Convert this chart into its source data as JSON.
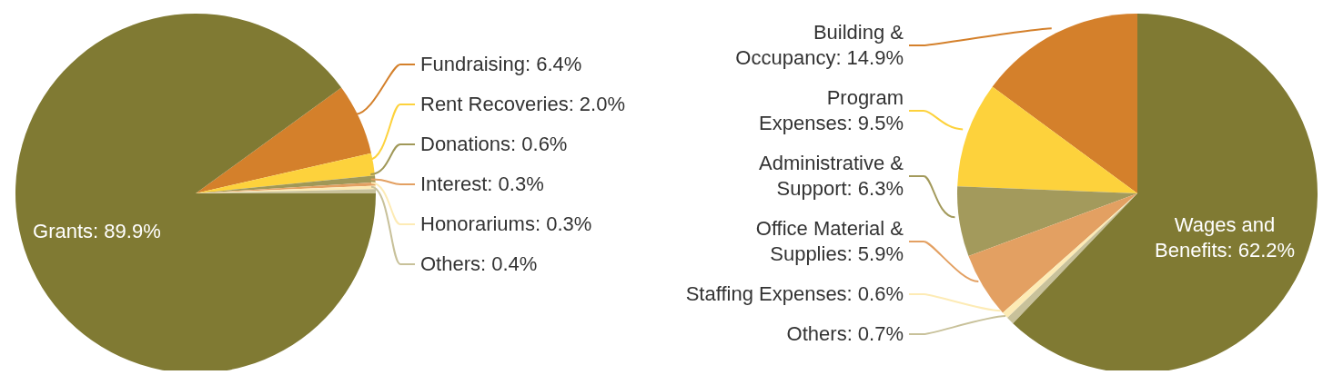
{
  "chart_data": [
    {
      "type": "pie",
      "categories": [
        "Fundraising",
        "Rent Recoveries",
        "Donations",
        "Interest",
        "Honorariums",
        "Others",
        "Grants"
      ],
      "values": [
        6.4,
        2.0,
        0.6,
        0.3,
        0.3,
        0.4,
        89.9
      ],
      "value_labels": [
        "6.4%",
        "2.0%",
        "0.6%",
        "0.3%",
        "0.3%",
        "0.4%",
        "89.9%"
      ],
      "colors": [
        "#d4802b",
        "#fdd23c",
        "#a09858",
        "#e3a062",
        "#fdebb5",
        "#c8c19a",
        "#807a33"
      ]
    },
    {
      "type": "pie",
      "categories": [
        "Building & Occupancy",
        "Program Expenses",
        "Administrative & Support",
        "Office Material & Supplies",
        "Staffing Expenses",
        "Others",
        "Wages and Benefits"
      ],
      "values": [
        14.9,
        9.5,
        6.3,
        5.9,
        0.6,
        0.7,
        62.2
      ],
      "value_labels": [
        "14.9%",
        "9.5%",
        "6.3%",
        "5.9%",
        "0.6%",
        "0.7%",
        "62.2%"
      ],
      "colors": [
        "#d4802b",
        "#fdd23c",
        "#a39a5c",
        "#e3a062",
        "#fdebb5",
        "#c8c19a",
        "#807a33"
      ]
    }
  ]
}
